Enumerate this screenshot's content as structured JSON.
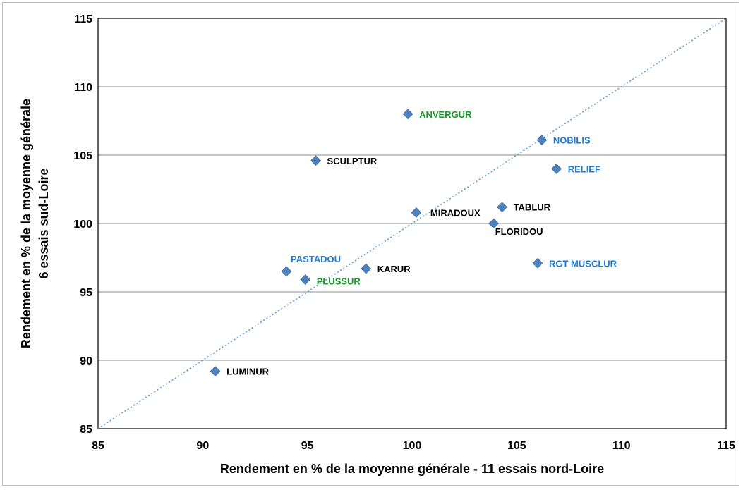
{
  "chart_data": {
    "type": "scatter",
    "title": "",
    "xlabel": "Rendement en % de la moyenne générale - 11 essais nord-Loire",
    "ylabel_lines": [
      "Rendement en % de la moyenne générale",
      "6 essais sud-Loire"
    ],
    "xlim": [
      85,
      115
    ],
    "ylim": [
      85,
      115
    ],
    "xticks": [
      "85",
      "90",
      "95",
      "100",
      "105",
      "110",
      "115"
    ],
    "yticks": [
      "85",
      "90",
      "95",
      "100",
      "105",
      "110",
      "115"
    ],
    "grid": "horizontal",
    "reference_line": {
      "from": [
        85,
        85
      ],
      "to": [
        115,
        115
      ],
      "style": "dotted",
      "color": "#5b9bd5"
    },
    "marker_color": "#4f81bd",
    "label_colors": {
      "black": "#000000",
      "blue": "#1f7ad6",
      "green": "#1a9a2a"
    },
    "points": [
      {
        "name": "ANVERGUR",
        "x": 99.8,
        "y": 108.0,
        "color": "green"
      },
      {
        "name": "NOBILIS",
        "x": 106.2,
        "y": 106.1,
        "color": "blue"
      },
      {
        "name": "RELIEF",
        "x": 106.9,
        "y": 104.0,
        "color": "blue"
      },
      {
        "name": "SCULPTUR",
        "x": 95.4,
        "y": 104.6,
        "color": "black"
      },
      {
        "name": "TABLUR",
        "x": 104.3,
        "y": 101.2,
        "color": "black"
      },
      {
        "name": "MIRADOUX",
        "x": 100.2,
        "y": 100.8,
        "color": "black"
      },
      {
        "name": "FLORIDOU",
        "x": 103.9,
        "y": 100.0,
        "color": "black"
      },
      {
        "name": "RGT MUSCLUR",
        "x": 106.0,
        "y": 97.1,
        "color": "blue"
      },
      {
        "name": "PASTADOU",
        "x": 94.0,
        "y": 96.5,
        "color": "blue"
      },
      {
        "name": "KARUR",
        "x": 97.8,
        "y": 96.7,
        "color": "black"
      },
      {
        "name": "PLUSSUR",
        "x": 94.9,
        "y": 95.9,
        "color": "green"
      },
      {
        "name": "LUMINUR",
        "x": 90.6,
        "y": 89.2,
        "color": "black"
      }
    ]
  }
}
